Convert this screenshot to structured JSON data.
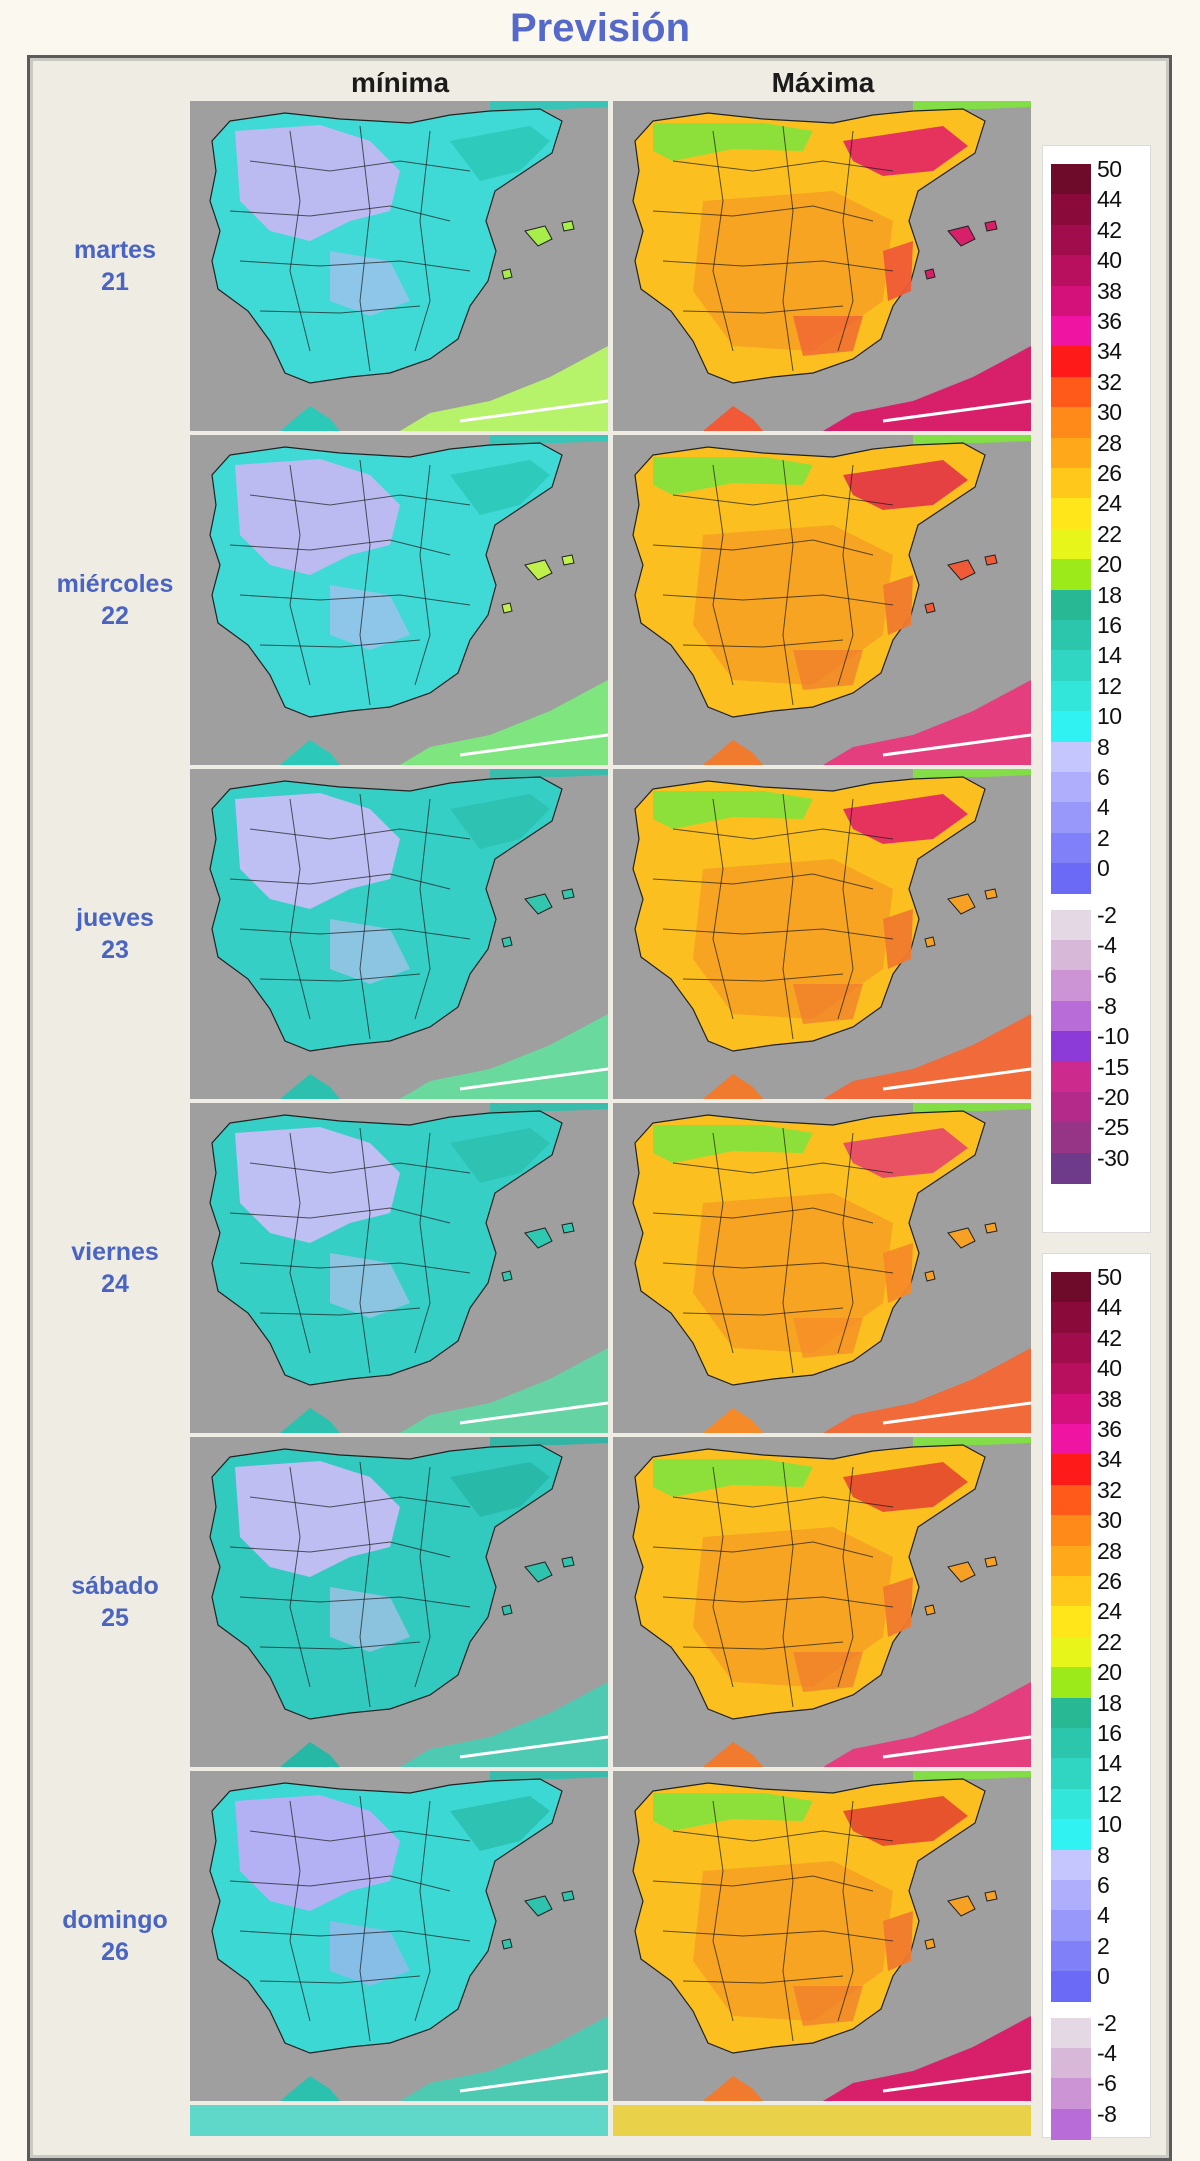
{
  "page": {
    "title": "Previsión",
    "columns": [
      "mínima",
      "Máxima"
    ]
  },
  "days": [
    {
      "name": "martes",
      "date": "21"
    },
    {
      "name": "miércoles",
      "date": "22"
    },
    {
      "name": "jueves",
      "date": "23"
    },
    {
      "name": "viernes",
      "date": "24"
    },
    {
      "name": "sábado",
      "date": "25"
    },
    {
      "name": "domingo",
      "date": "26"
    }
  ],
  "maps": {
    "min": [
      {
        "spain": "#3fd9d6",
        "center": "#c2b9f3",
        "coast": "#2cc8b8",
        "africa": "#b6f26a",
        "islands": "#a8ee4a"
      },
      {
        "spain": "#3fd9d6",
        "center": "#c2b9f3",
        "coast": "#2cc8b8",
        "africa": "#7fe57e",
        "islands": "#c0f04b"
      },
      {
        "spain": "#35cfc6",
        "center": "#c6bef4",
        "coast": "#2cc0ae",
        "africa": "#69d99e",
        "islands": "#34c6ad"
      },
      {
        "spain": "#35cfc6",
        "center": "#c6bef4",
        "coast": "#2cc0ae",
        "africa": "#66d3a4",
        "islands": "#2fc9b2"
      },
      {
        "spain": "#32c9bf",
        "center": "#c6bef4",
        "coast": "#27b7a5",
        "africa": "#4fcab2",
        "islands": "#2fc3ad"
      },
      {
        "spain": "#3bd8d4",
        "center": "#b9aef5",
        "coast": "#2cc0ae",
        "africa": "#4fcab2",
        "islands": "#2fc3ad"
      }
    ],
    "max": [
      {
        "spain": "#fbc020",
        "center": "#f6a123",
        "coast": "#f05a36",
        "hot": "#e01a6a",
        "north": "#7fe33c",
        "africa": "#d81f6a",
        "islands": "#d81f6a"
      },
      {
        "spain": "#fbc020",
        "center": "#f6a123",
        "coast": "#f07a2e",
        "hot": "#e02a4a",
        "north": "#7fe33c",
        "africa": "#e53e7f",
        "islands": "#f05a36"
      },
      {
        "spain": "#fbc020",
        "center": "#f6a123",
        "coast": "#f07a2e",
        "hot": "#e01a6a",
        "north": "#7fe33c",
        "africa": "#f06a3a",
        "islands": "#f6a123"
      },
      {
        "spain": "#fbc020",
        "center": "#f6a123",
        "coast": "#f58a28",
        "hot": "#e53e6f",
        "north": "#7fe33c",
        "africa": "#f06a3a",
        "islands": "#f6a123"
      },
      {
        "spain": "#fbc020",
        "center": "#f6a123",
        "coast": "#f07a2e",
        "hot": "#e3402f",
        "north": "#7fe33c",
        "africa": "#e53e7f",
        "islands": "#f6a123"
      },
      {
        "spain": "#fbc020",
        "center": "#f6a123",
        "coast": "#f07a2e",
        "hot": "#e3402f",
        "north": "#7fe33c",
        "africa": "#d81f6a",
        "islands": "#f6a123"
      }
    ]
  },
  "legends": [
    {
      "items": [
        {
          "label": "50",
          "color": "#6e0a2a"
        },
        {
          "label": "44",
          "color": "#8a0a3a"
        },
        {
          "label": "42",
          "color": "#a10c4c"
        },
        {
          "label": "40",
          "color": "#b8105e"
        },
        {
          "label": "38",
          "color": "#d4107a"
        },
        {
          "label": "36",
          "color": "#f014a2"
        },
        {
          "label": "34",
          "color": "#ff1a1a"
        },
        {
          "label": "32",
          "color": "#ff5a1a"
        },
        {
          "label": "30",
          "color": "#ff8a1a"
        },
        {
          "label": "28",
          "color": "#ffa81a"
        },
        {
          "label": "26",
          "color": "#ffc81a"
        },
        {
          "label": "24",
          "color": "#ffe61a"
        },
        {
          "label": "22",
          "color": "#e8f51a"
        },
        {
          "label": "20",
          "color": "#9cea1a"
        },
        {
          "label": "18",
          "color": "#28b894"
        },
        {
          "label": "16",
          "color": "#2cc6ac"
        },
        {
          "label": "14",
          "color": "#30d6c2"
        },
        {
          "label": "12",
          "color": "#33e6da"
        },
        {
          "label": "10",
          "color": "#30f2f2"
        },
        {
          "label": "8",
          "color": "#c6c6ff"
        },
        {
          "label": "6",
          "color": "#aeaefc"
        },
        {
          "label": "4",
          "color": "#9898fa"
        },
        {
          "label": "2",
          "color": "#8080f8"
        },
        {
          "label": "0",
          "color": "#6a6af6"
        },
        {
          "label": "-2",
          "color": "#e3d8e3"
        },
        {
          "label": "-4",
          "color": "#d8b8d8"
        },
        {
          "label": "-6",
          "color": "#cc94d4"
        },
        {
          "label": "-8",
          "color": "#b86cd8"
        },
        {
          "label": "-10",
          "color": "#8c3ad8"
        },
        {
          "label": "-15",
          "color": "#cc2a8c"
        },
        {
          "label": "-20",
          "color": "#b42a8a"
        },
        {
          "label": "-25",
          "color": "#963486"
        },
        {
          "label": "-30",
          "color": "#6e3a8a"
        }
      ]
    },
    {
      "items": [
        {
          "label": "50",
          "color": "#6e0a2a"
        },
        {
          "label": "44",
          "color": "#8a0a3a"
        },
        {
          "label": "42",
          "color": "#a10c4c"
        },
        {
          "label": "40",
          "color": "#b8105e"
        },
        {
          "label": "38",
          "color": "#d4107a"
        },
        {
          "label": "36",
          "color": "#f014a2"
        },
        {
          "label": "34",
          "color": "#ff1a1a"
        },
        {
          "label": "32",
          "color": "#ff5a1a"
        },
        {
          "label": "30",
          "color": "#ff8a1a"
        },
        {
          "label": "28",
          "color": "#ffa81a"
        },
        {
          "label": "26",
          "color": "#ffc81a"
        },
        {
          "label": "24",
          "color": "#ffe61a"
        },
        {
          "label": "22",
          "color": "#e8f51a"
        },
        {
          "label": "20",
          "color": "#9cea1a"
        },
        {
          "label": "18",
          "color": "#28b894"
        },
        {
          "label": "16",
          "color": "#2cc6ac"
        },
        {
          "label": "14",
          "color": "#30d6c2"
        },
        {
          "label": "12",
          "color": "#33e6da"
        },
        {
          "label": "10",
          "color": "#30f2f2"
        },
        {
          "label": "8",
          "color": "#c6c6ff"
        },
        {
          "label": "6",
          "color": "#aeaefc"
        },
        {
          "label": "4",
          "color": "#9898fa"
        },
        {
          "label": "2",
          "color": "#8080f8"
        },
        {
          "label": "0",
          "color": "#6a6af6"
        },
        {
          "label": "-2",
          "color": "#e3d8e3"
        },
        {
          "label": "-4",
          "color": "#d8b8d8"
        },
        {
          "label": "-6",
          "color": "#cc94d4"
        },
        {
          "label": "-8",
          "color": "#b86cd8"
        }
      ]
    }
  ]
}
